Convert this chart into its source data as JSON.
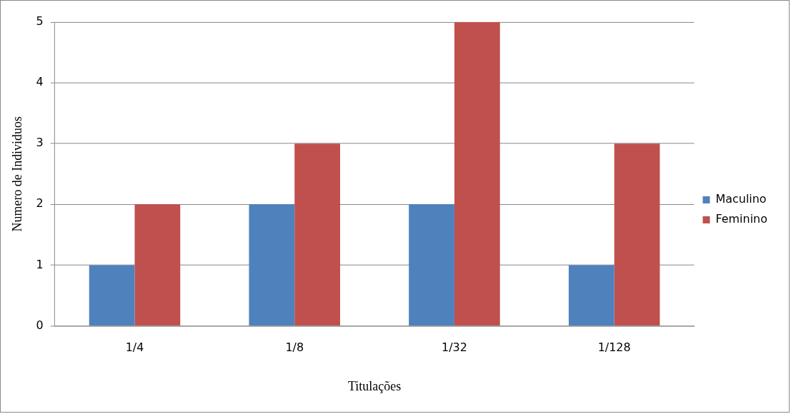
{
  "chart_data": {
    "type": "bar",
    "xlabel": "Titulações",
    "ylabel": "Numero de Individuos",
    "categories": [
      "1/4",
      "1/8",
      "1/32",
      "1/128"
    ],
    "series": [
      {
        "name": "Maculino",
        "color": "#4f81bd",
        "values": [
          1,
          2,
          2,
          1
        ]
      },
      {
        "name": "Feminino",
        "color": "#c0504d",
        "values": [
          2,
          3,
          5,
          3
        ]
      }
    ],
    "ylim": [
      0,
      5
    ],
    "yticks": [
      0,
      1,
      2,
      3,
      4,
      5
    ],
    "grid": "y",
    "legend": "right"
  }
}
